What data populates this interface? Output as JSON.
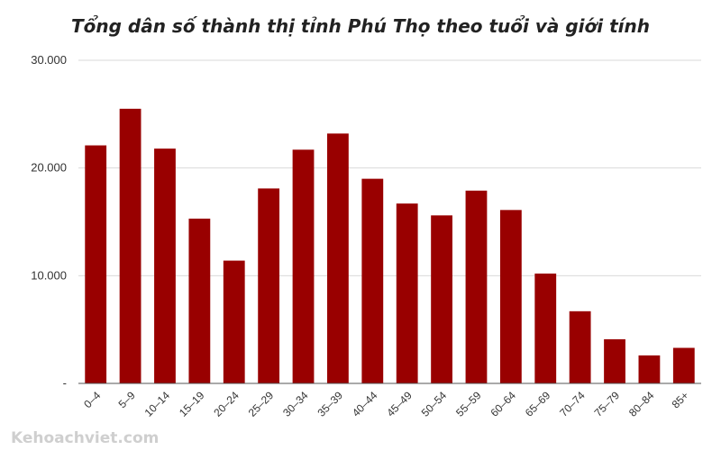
{
  "chart_data": {
    "type": "bar",
    "title": "Tổng dân số thành thị tỉnh Phú Thọ theo tuổi và giới tính",
    "xlabel": "",
    "ylabel": "",
    "categories": [
      "0–4",
      "5–9",
      "10–14",
      "15–19",
      "20–24",
      "25–29",
      "30–34",
      "35–39",
      "40–44",
      "45–49",
      "50–54",
      "55–59",
      "60–64",
      "65–69",
      "70–74",
      "75–79",
      "80–84",
      "85+"
    ],
    "values": [
      22100,
      25500,
      21800,
      15300,
      11400,
      18100,
      21700,
      23200,
      19000,
      16700,
      15600,
      17900,
      16100,
      10200,
      6700,
      4100,
      2600,
      3300
    ],
    "ylim": [
      0,
      30000
    ],
    "yticks": [
      0,
      10000,
      20000,
      30000
    ],
    "ytick_labels": [
      "-",
      "10.000",
      "20.000",
      "30.000"
    ],
    "grid": true,
    "legend": "none",
    "bar_color": "#990000"
  },
  "watermark": "Kehoachviet.com"
}
